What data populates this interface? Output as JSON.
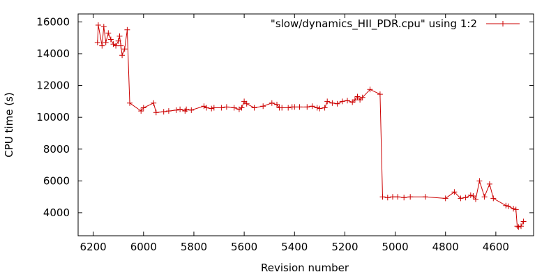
{
  "chart_data": {
    "type": "line",
    "title": "",
    "xlabel": "Revision number",
    "ylabel": "CPU time (s)",
    "x_reversed": true,
    "xlim": [
      6260,
      4450
    ],
    "ylim": [
      2550,
      16500
    ],
    "xticks": [
      6200,
      6000,
      5800,
      5600,
      5400,
      5200,
      5000,
      4800,
      4600
    ],
    "yticks": [
      4000,
      6000,
      8000,
      10000,
      12000,
      14000,
      16000
    ],
    "grid": false,
    "legend_position": "top-right",
    "series": [
      {
        "name": "\"slow/dynamics_HII_PDR.cpu\" using 1:2",
        "color": "#cc0000",
        "marker": "plus",
        "x": [
          6183,
          6180,
          6165,
          6158,
          6150,
          6140,
          6130,
          6120,
          6110,
          6100,
          6095,
          6090,
          6085,
          6075,
          6065,
          6055,
          6010,
          6000,
          5960,
          5950,
          5920,
          5900,
          5870,
          5855,
          5835,
          5830,
          5810,
          5760,
          5750,
          5730,
          5720,
          5690,
          5670,
          5640,
          5620,
          5610,
          5600,
          5590,
          5560,
          5525,
          5490,
          5470,
          5460,
          5450,
          5425,
          5410,
          5400,
          5380,
          5350,
          5330,
          5310,
          5300,
          5280,
          5270,
          5250,
          5230,
          5210,
          5190,
          5170,
          5160,
          5150,
          5140,
          5130,
          5100,
          5060,
          5050,
          5030,
          5010,
          4990,
          4965,
          4940,
          4880,
          4800,
          4765,
          4740,
          4720,
          4700,
          4690,
          4680,
          4665,
          4645,
          4625,
          4610,
          4560,
          4550,
          4530,
          4520,
          4515,
          4510,
          4500,
          4490
        ],
        "y": [
          14700,
          15800,
          14500,
          15700,
          14700,
          15300,
          14900,
          14600,
          14500,
          14800,
          15100,
          14500,
          13900,
          14300,
          15500,
          10900,
          10400,
          10600,
          10900,
          10300,
          10350,
          10400,
          10450,
          10500,
          10400,
          10500,
          10450,
          10700,
          10600,
          10550,
          10600,
          10600,
          10650,
          10600,
          10500,
          10600,
          11000,
          10850,
          10600,
          10700,
          10900,
          10800,
          10600,
          10600,
          10600,
          10650,
          10650,
          10650,
          10650,
          10700,
          10600,
          10550,
          10600,
          11000,
          10900,
          10850,
          11000,
          11050,
          10950,
          11100,
          11300,
          11100,
          11250,
          11750,
          11450,
          5000,
          4950,
          5000,
          5000,
          4950,
          5000,
          5000,
          4900,
          5300,
          4900,
          4950,
          5100,
          5050,
          4850,
          6000,
          5000,
          5800,
          4900,
          4450,
          4400,
          4250,
          4200,
          3150,
          3100,
          3150,
          3450
        ]
      }
    ]
  }
}
